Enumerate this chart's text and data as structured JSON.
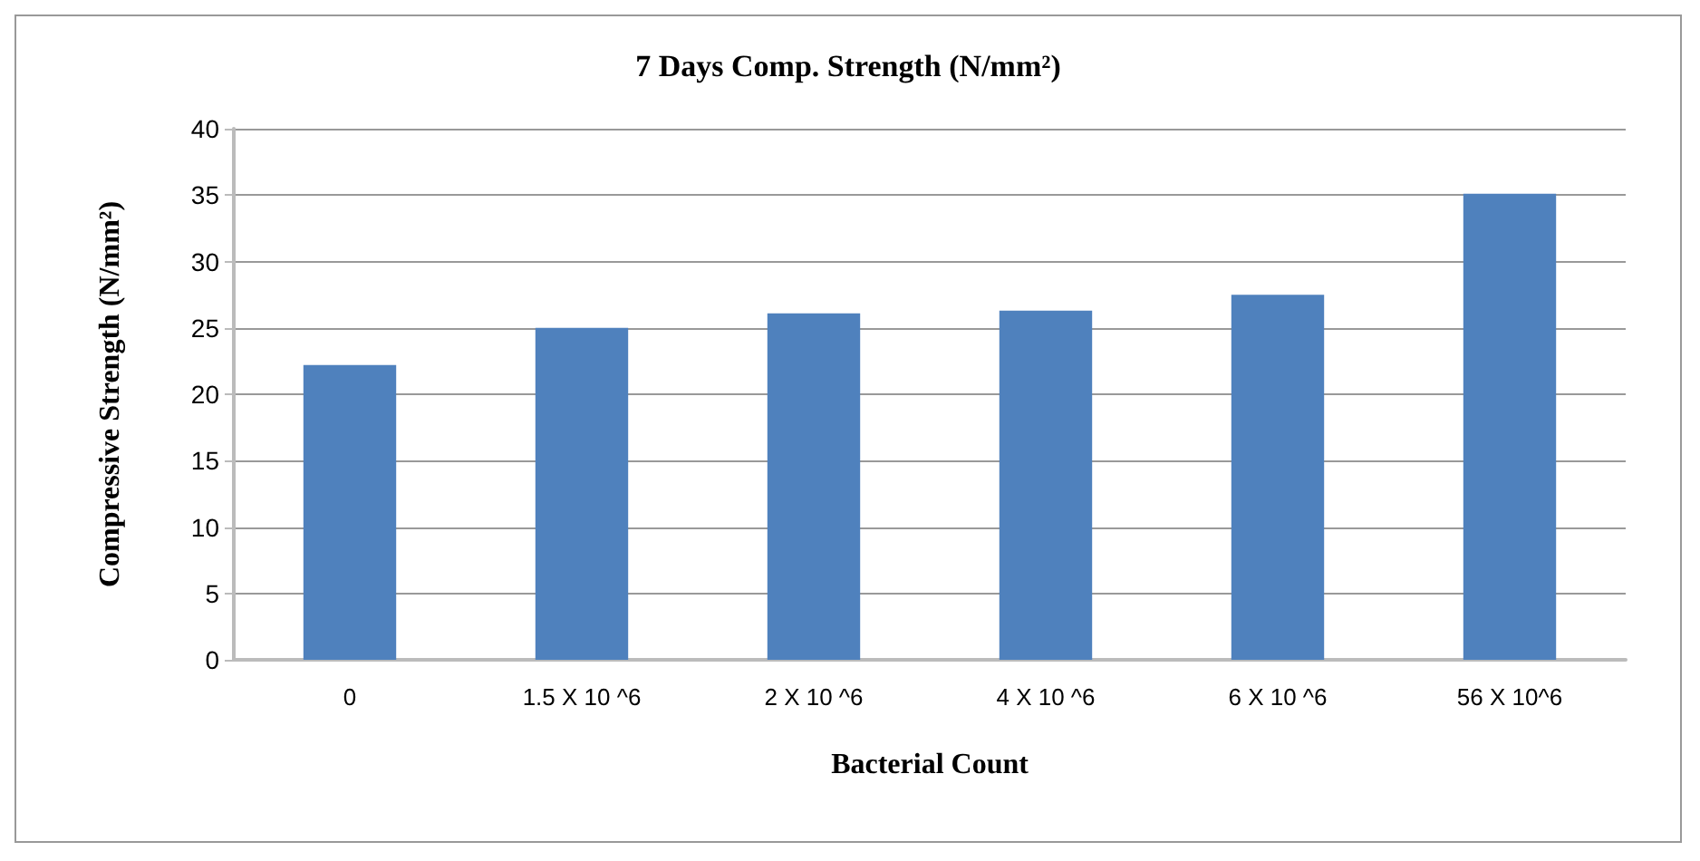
{
  "chart_data": {
    "type": "bar",
    "title": "7 Days Comp. Strength (N/mm²)",
    "xlabel": "Bacterial Count",
    "ylabel": "Compressive Strength (N/mm²)",
    "categories": [
      "0",
      "1.5 X 10 ^6",
      "2 X 10 ^6",
      "4 X 10 ^6",
      "6 X 10 ^6",
      "56 X 10^6"
    ],
    "values": [
      22.2,
      25.0,
      26.1,
      26.3,
      27.5,
      35.1
    ],
    "color": "#4f81bd",
    "ylim": [
      0,
      40
    ],
    "yticks": [
      0,
      5,
      10,
      15,
      20,
      25,
      30,
      35,
      40
    ],
    "grid": "y"
  }
}
